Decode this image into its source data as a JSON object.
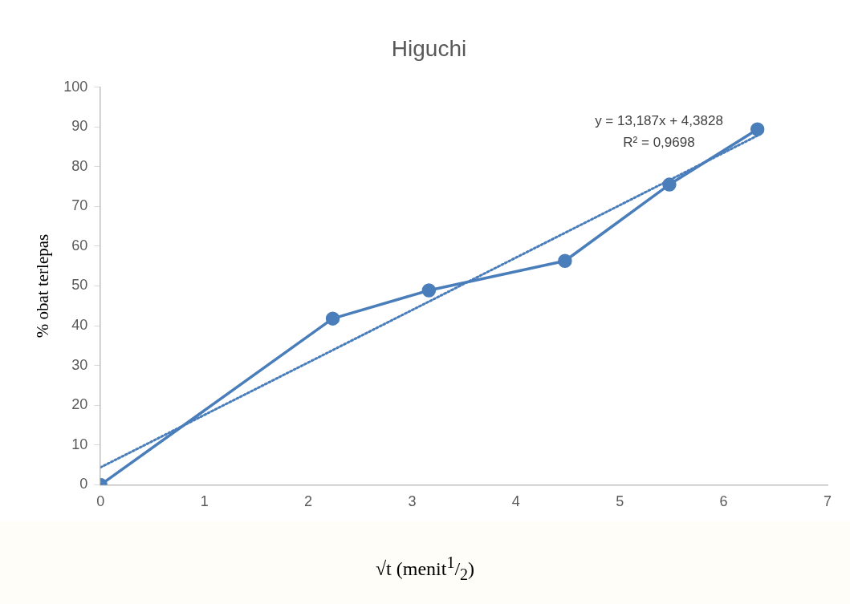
{
  "chart_data": {
    "type": "line",
    "title": "Higuchi",
    "xlabel": "√t (menit$^{1}$/$_{2}$)",
    "ylabel": "% obat terlepas",
    "xlim": [
      0,
      7
    ],
    "xticks": [
      0,
      1,
      2,
      3,
      4,
      5,
      6,
      7
    ],
    "ylim": [
      0,
      100
    ],
    "yticks": [
      0,
      10,
      20,
      30,
      40,
      50,
      60,
      70,
      80,
      90,
      100
    ],
    "grid": false,
    "legend": false,
    "marker": "circle",
    "line_style": "solid",
    "series": [
      {
        "color": "#4a7ebb",
        "x": [
          0,
          2.236,
          3.162,
          4.472,
          5.477,
          6.325
        ],
        "values": [
          0,
          41.8,
          48.9,
          56.3,
          75.5,
          89.4
        ]
      },
      {
        "type": "line",
        "color": "#4a7ebb",
        "marker": "none",
        "line_style": "dotted",
        "x": [
          0,
          6.325
        ],
        "values": [
          4.38,
          87.79
        ]
      }
    ],
    "annotations": [
      "y = 13,187x + 4,3828",
      "R² = 0,9698"
    ]
  }
}
